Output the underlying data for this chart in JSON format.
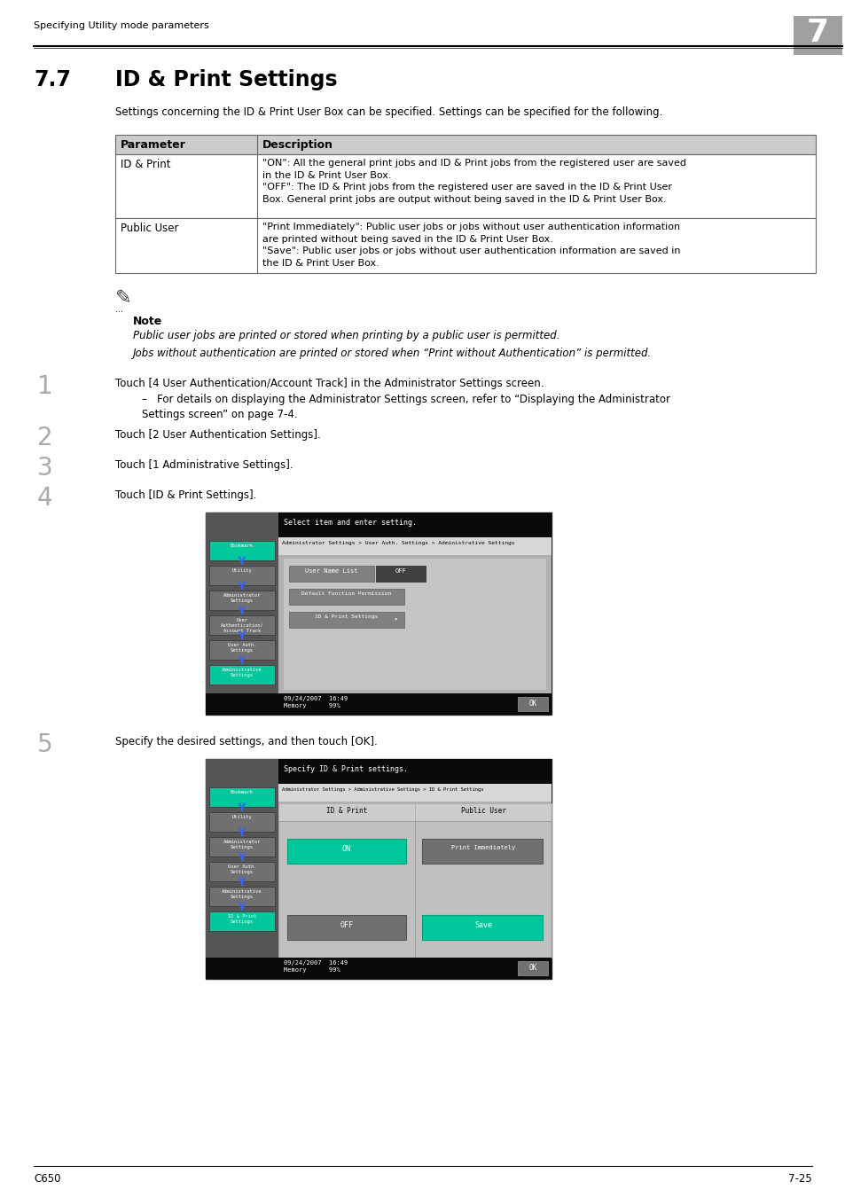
{
  "header_text": "Specifying Utility mode parameters",
  "chapter_num": "7",
  "section_num": "7.7",
  "section_title": "ID & Print Settings",
  "intro_text": "Settings concerning the ID & Print User Box can be specified. Settings can be specified for the following.",
  "table_headers": [
    "Parameter",
    "Description"
  ],
  "table_rows": [
    {
      "param": "ID & Print",
      "desc": "\"ON\": All the general print jobs and ID & Print jobs from the registered user are saved\nin the ID & Print User Box.\n\"OFF\": The ID & Print jobs from the registered user are saved in the ID & Print User\nBox. General print jobs are output without being saved in the ID & Print User Box."
    },
    {
      "param": "Public User",
      "desc": "\"Print Immediately\": Public user jobs or jobs without user authentication information\nare printed without being saved in the ID & Print User Box.\n\"Save\": Public user jobs or jobs without user authentication information are saved in\nthe ID & Print User Box."
    }
  ],
  "note_title": "Note",
  "note_lines": [
    "Public user jobs are printed or stored when printing by a public user is permitted.",
    "Jobs without authentication are printed or stored when “Print without Authentication” is permitted."
  ],
  "steps": [
    {
      "num": "1",
      "text": "Touch [4 User Authentication/Account Track] in the Administrator Settings screen.",
      "sub": "For details on displaying the Administrator Settings screen, refer to “Displaying the Administrator\nSettings screen” on page 7-4."
    },
    {
      "num": "2",
      "text": "Touch [2 User Authentication Settings].",
      "sub": null
    },
    {
      "num": "3",
      "text": "Touch [1 Administrative Settings].",
      "sub": null
    },
    {
      "num": "4",
      "text": "Touch [ID & Print Settings].",
      "sub": null
    },
    {
      "num": "5",
      "text": "Specify the desired settings, and then touch [OK].",
      "sub": null
    }
  ],
  "footer_left": "C650",
  "footer_right": "7-25",
  "bg_color": "#ffffff",
  "table_header_bg": "#cccccc",
  "table_border_color": "#666666",
  "screen1": {
    "top_bar_text": "Select item and enter setting.",
    "breadcrumb": "Administrator Settings > User Auth. Settings > Administrative Settings",
    "buttons_left": [
      "Bookmark",
      "Utility",
      "Administrator\nSettings",
      "User\nAuthentication/\nAccount Track",
      "User Auth.\nSettings",
      "Administrative\nSettings"
    ],
    "button_colors": [
      "#00c89c",
      "#707070",
      "#707070",
      "#707070",
      "#707070",
      "#00c89c"
    ]
  },
  "screen2": {
    "top_bar_text": "Specify ID & Print settings.",
    "breadcrumb": "Administrator Settings > Administrative Settings > ID & Print Settings",
    "buttons_left": [
      "Bookmark",
      "Utility",
      "Administrator\nSettings",
      "User Auth.\nSettings",
      "Administrative\nSettings",
      "ID & Print\nSettings"
    ],
    "button_colors": [
      "#00c89c",
      "#707070",
      "#707070",
      "#707070",
      "#707070",
      "#00c89c"
    ],
    "content_cols": [
      "ID & Print",
      "Public User"
    ],
    "col1_btns": [
      "ON",
      "OFF"
    ],
    "col2_btns": [
      "Print Immediately",
      "Save"
    ],
    "col1_btn_colors": [
      "#00c89c",
      "#707070"
    ],
    "col2_btn_colors": [
      "#909090",
      "#00c89c"
    ]
  }
}
